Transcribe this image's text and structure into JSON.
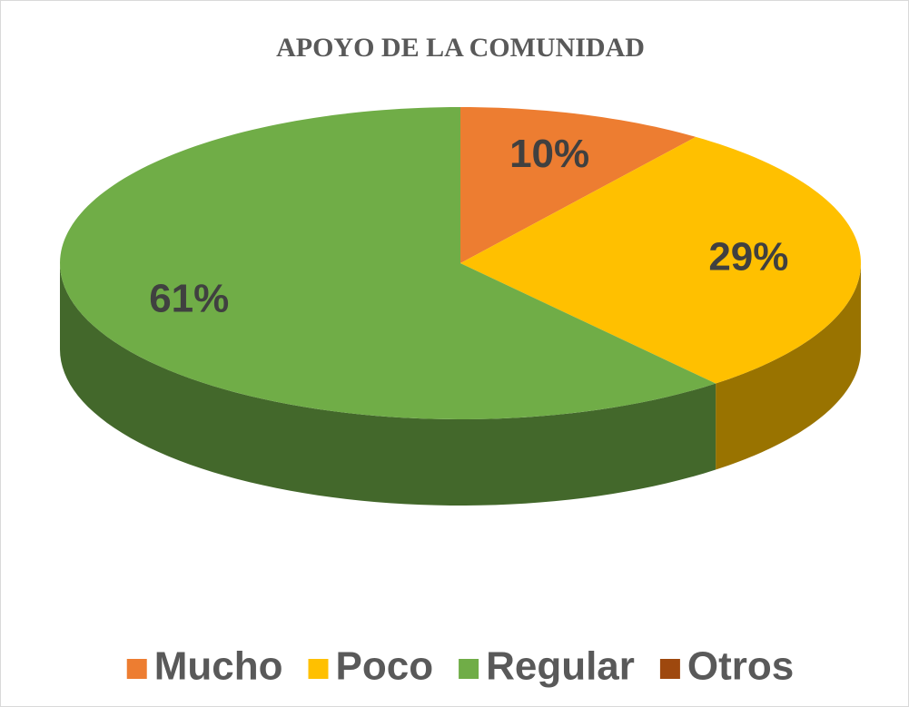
{
  "chart_data": {
    "type": "pie",
    "title": "APOYO DE LA COMUNIDAD",
    "categories": [
      "Mucho",
      "Poco",
      "Regular",
      "Otros"
    ],
    "values": [
      10,
      29,
      61,
      0
    ],
    "value_labels": [
      "10%",
      "29%",
      "61%",
      null
    ],
    "colors": [
      "#ed7d31",
      "#ffc000",
      "#70ad47",
      "#9e480e"
    ],
    "legend": "bottom"
  }
}
